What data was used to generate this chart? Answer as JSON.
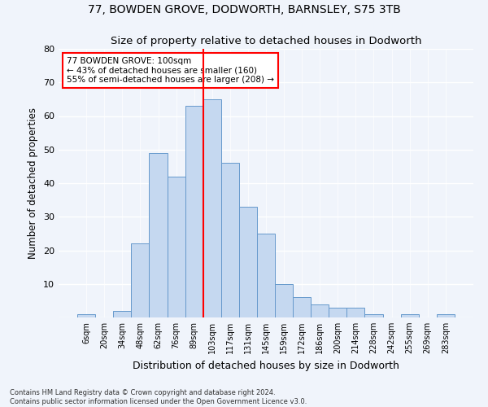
{
  "title1": "77, BOWDEN GROVE, DODWORTH, BARNSLEY, S75 3TB",
  "title2": "Size of property relative to detached houses in Dodworth",
  "xlabel": "Distribution of detached houses by size in Dodworth",
  "ylabel": "Number of detached properties",
  "categories": [
    "6sqm",
    "20sqm",
    "34sqm",
    "48sqm",
    "62sqm",
    "76sqm",
    "89sqm",
    "103sqm",
    "117sqm",
    "131sqm",
    "145sqm",
    "159sqm",
    "172sqm",
    "186sqm",
    "200sqm",
    "214sqm",
    "228sqm",
    "242sqm",
    "255sqm",
    "269sqm",
    "283sqm"
  ],
  "values": [
    1,
    0,
    2,
    22,
    49,
    42,
    63,
    65,
    46,
    33,
    25,
    10,
    6,
    4,
    3,
    3,
    1,
    0,
    1,
    0,
    1
  ],
  "bar_color": "#c5d8f0",
  "bar_edge_color": "#6699cc",
  "vline_x_index": 7,
  "vline_color": "red",
  "annotation_title": "77 BOWDEN GROVE: 100sqm",
  "annotation_line1": "← 43% of detached houses are smaller (160)",
  "annotation_line2": "55% of semi-detached houses are larger (208) →",
  "annotation_box_color": "white",
  "annotation_box_edge_color": "red",
  "ylim": [
    0,
    80
  ],
  "yticks": [
    0,
    10,
    20,
    30,
    40,
    50,
    60,
    70,
    80
  ],
  "footer1": "Contains HM Land Registry data © Crown copyright and database right 2024.",
  "footer2": "Contains public sector information licensed under the Open Government Licence v3.0.",
  "bg_color": "#f0f4fb",
  "plot_bg_color": "#f0f4fb",
  "grid_color": "#ffffff"
}
